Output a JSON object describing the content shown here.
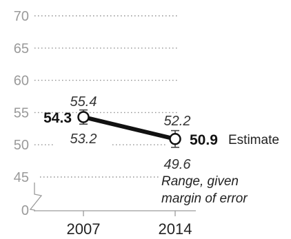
{
  "chart_data": {
    "type": "line",
    "x": [
      "2007",
      "2014"
    ],
    "series": [
      {
        "values": [
          54.3,
          50.9
        ],
        "upper": [
          55.4,
          52.2
        ],
        "lower": [
          53.2,
          49.6
        ],
        "labels": [
          "54.3",
          "50.9"
        ],
        "upper_labels": [
          "55.4",
          "52.2"
        ],
        "lower_labels": [
          "53.2",
          "49.6"
        ]
      }
    ],
    "yticks": [
      0,
      45,
      50,
      55,
      60,
      65,
      70
    ],
    "ytick_labels": [
      "0",
      "45",
      "50",
      "55",
      "60",
      "65",
      "70"
    ],
    "ylim": [
      45,
      70
    ],
    "axis_break": true,
    "grid": true,
    "annotations": {
      "estimate": "Estimate",
      "range_line1": "Range, given",
      "range_line2": "margin of error"
    }
  }
}
